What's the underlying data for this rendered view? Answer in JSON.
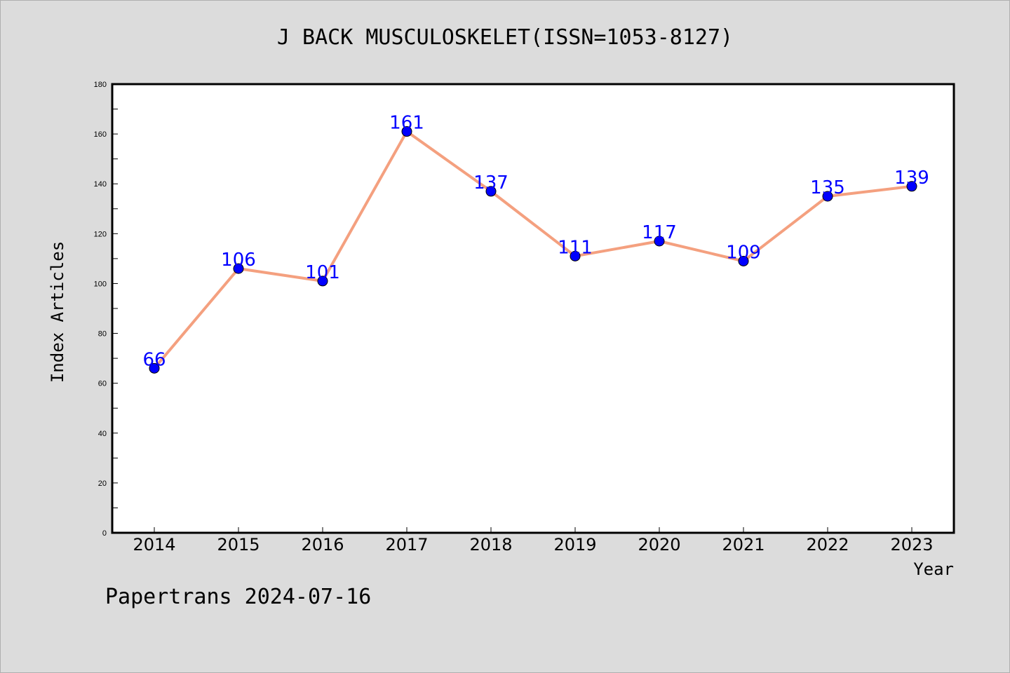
{
  "page": {
    "title": "J BACK MUSCULOSKELET(ISSN=1053-8127)",
    "footer": "Papertrans 2024-07-16"
  },
  "colors": {
    "background": "#dcdcdc",
    "plot_background": "#ffffff",
    "line": "#f4a07f",
    "marker": "#0000ff",
    "data_label": "#0000ff"
  },
  "chart_data": {
    "type": "line",
    "title": "J BACK MUSCULOSKELET(ISSN=1053-8127)",
    "xlabel": "Year",
    "ylabel": "Index Articles",
    "categories": [
      "2014",
      "2015",
      "2016",
      "2017",
      "2018",
      "2019",
      "2020",
      "2021",
      "2022",
      "2023"
    ],
    "values": [
      66,
      106,
      101,
      161,
      137,
      111,
      117,
      109,
      135,
      139
    ],
    "ylim": [
      0,
      180
    ],
    "yticks": [
      0,
      20,
      40,
      60,
      80,
      100,
      120,
      140,
      160,
      180
    ],
    "grid": false,
    "legend": "none",
    "data_labels": true
  }
}
